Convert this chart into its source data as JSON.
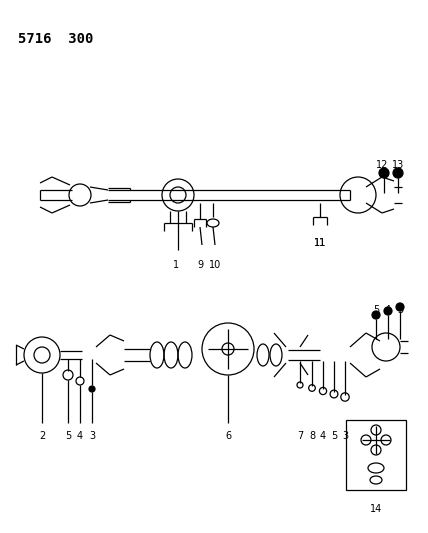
{
  "bg_color": "#ffffff",
  "line_color": "#000000",
  "title_text": "5716  300",
  "title_fontsize": 10,
  "title_fontweight": "bold",
  "figsize": [
    4.28,
    5.33
  ],
  "dpi": 100
}
